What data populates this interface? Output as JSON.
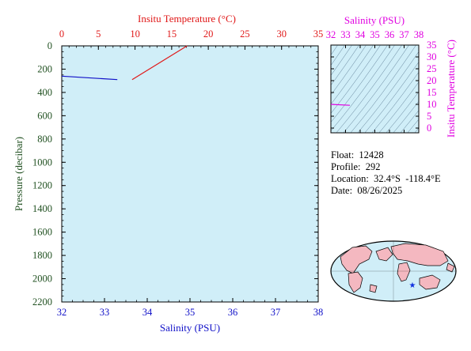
{
  "chart_data": [
    {
      "type": "line",
      "panel": "profile",
      "ylabel": "Pressure (decibar)",
      "xlabel_bottom": "Salinity (PSU)",
      "xlabel_top": "Insitu Temperature (°C)",
      "ylim": [
        0,
        2200
      ],
      "y_reversed": true,
      "xlim_bottom": [
        32,
        38
      ],
      "xlim_top": [
        0,
        35
      ],
      "y_ticks": [
        "0",
        "200",
        "400",
        "600",
        "800",
        "1000",
        "1200",
        "1400",
        "1600",
        "1800",
        "2000",
        "2200"
      ],
      "x_bottom_ticks": [
        "32",
        "33",
        "34",
        "35",
        "36",
        "37",
        "38"
      ],
      "x_top_ticks": [
        "0",
        "5",
        "10",
        "15",
        "20",
        "25",
        "30",
        "35"
      ],
      "series": [
        {
          "axis": "bottom",
          "color": "#1010c8",
          "x": [
            32.0,
            33.3
          ],
          "y": [
            260,
            290
          ]
        },
        {
          "axis": "top",
          "color": "#e01818",
          "x": [
            9.6,
            17.1
          ],
          "y": [
            290,
            0
          ]
        }
      ],
      "background": "#d0eef8",
      "grid": false
    },
    {
      "type": "scatter",
      "panel": "ts",
      "xlabel": "Salinity (PSU)",
      "ylabel": "Insitu Temperature (°C)",
      "xlim": [
        32,
        38
      ],
      "ylim": [
        -2,
        35
      ],
      "x_ticks": [
        "32",
        "33",
        "34",
        "35",
        "36",
        "37",
        "38"
      ],
      "y_ticks": [
        "0",
        "5",
        "10",
        "15",
        "20",
        "25",
        "30",
        "35"
      ],
      "series": [
        {
          "color": "#e000e0",
          "x": [
            32.0,
            33.3
          ],
          "y": [
            10.0,
            9.6
          ]
        }
      ],
      "background": "#d0eef8",
      "density_contours": true
    }
  ],
  "info": {
    "float": "Float:  12428",
    "profile": "Profile:  292",
    "location": "Location:  32.4°S  -118.4°E",
    "date": "Date:  08/26/2025"
  },
  "map": {
    "marker_icon": "star-icon",
    "marker_color": "#1030e0",
    "land_color": "#f4b8c0",
    "ocean_color": "#d0eef8"
  },
  "colors": {
    "temperature": "#e01818",
    "salinity": "#1010c8",
    "ts": "#e000e0",
    "pressure_axis": "#205020"
  }
}
